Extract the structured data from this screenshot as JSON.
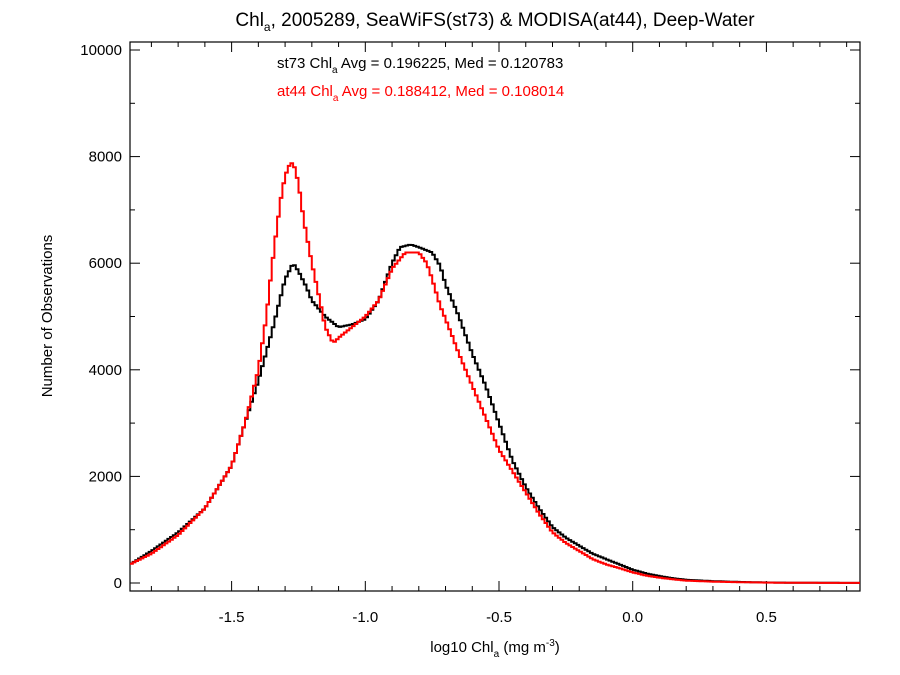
{
  "chart_data": {
    "type": "line",
    "title_parts": {
      "a": "Chl",
      "sub": "a",
      "b": ", 2005289, SeaWiFS(st73) & MODISA(at44), Deep-Water"
    },
    "xlabel_parts": {
      "a": "log10 Chl",
      "sub": "a",
      "b": " (mg m",
      "sup": "-3",
      "c": ")"
    },
    "ylabel": "Number of Observations",
    "xlim": [
      -1.88,
      0.85
    ],
    "ylim": [
      -150,
      10150
    ],
    "x_ticks": [
      -1.5,
      -1.0,
      -0.5,
      0.0,
      0.5
    ],
    "x_tick_labels": [
      "-1.5",
      "-1.0",
      "-0.5",
      "0.0",
      "0.5"
    ],
    "y_ticks": [
      0,
      2000,
      4000,
      6000,
      8000,
      10000
    ],
    "y_tick_labels": [
      "0",
      "2000",
      "4000",
      "6000",
      "8000",
      "10000"
    ],
    "grid": false,
    "series": [
      {
        "name": "st73",
        "color": "#000000",
        "annotation": {
          "a": "st73 Chl",
          "sub": "a",
          "b": " Avg = 0.196225, Med = 0.120783"
        },
        "points": [
          [
            -1.88,
            350
          ],
          [
            -1.8,
            600
          ],
          [
            -1.7,
            950
          ],
          [
            -1.6,
            1400
          ],
          [
            -1.5,
            2200
          ],
          [
            -1.45,
            3000
          ],
          [
            -1.4,
            3800
          ],
          [
            -1.35,
            4700
          ],
          [
            -1.32,
            5300
          ],
          [
            -1.3,
            5700
          ],
          [
            -1.27,
            6000
          ],
          [
            -1.25,
            5850
          ],
          [
            -1.22,
            5550
          ],
          [
            -1.2,
            5300
          ],
          [
            -1.15,
            5000
          ],
          [
            -1.1,
            4800
          ],
          [
            -1.05,
            4850
          ],
          [
            -1.0,
            4950
          ],
          [
            -0.95,
            5300
          ],
          [
            -0.9,
            6000
          ],
          [
            -0.87,
            6300
          ],
          [
            -0.83,
            6350
          ],
          [
            -0.8,
            6300
          ],
          [
            -0.75,
            6200
          ],
          [
            -0.72,
            5950
          ],
          [
            -0.7,
            5600
          ],
          [
            -0.65,
            5000
          ],
          [
            -0.6,
            4300
          ],
          [
            -0.55,
            3700
          ],
          [
            -0.5,
            3000
          ],
          [
            -0.45,
            2300
          ],
          [
            -0.4,
            1800
          ],
          [
            -0.35,
            1400
          ],
          [
            -0.3,
            1050
          ],
          [
            -0.25,
            850
          ],
          [
            -0.2,
            700
          ],
          [
            -0.15,
            550
          ],
          [
            -0.1,
            450
          ],
          [
            -0.05,
            350
          ],
          [
            0.0,
            250
          ],
          [
            0.05,
            180
          ],
          [
            0.1,
            130
          ],
          [
            0.15,
            90
          ],
          [
            0.2,
            60
          ],
          [
            0.3,
            35
          ],
          [
            0.4,
            20
          ],
          [
            0.5,
            10
          ],
          [
            0.6,
            5
          ],
          [
            0.85,
            2
          ]
        ]
      },
      {
        "name": "at44",
        "color": "#ff0000",
        "annotation": {
          "a": "at44 Chl",
          "sub": "a",
          "b": " Avg = 0.188412, Med = 0.108014"
        },
        "points": [
          [
            -1.88,
            350
          ],
          [
            -1.8,
            550
          ],
          [
            -1.7,
            900
          ],
          [
            -1.6,
            1400
          ],
          [
            -1.5,
            2200
          ],
          [
            -1.45,
            3000
          ],
          [
            -1.4,
            4000
          ],
          [
            -1.37,
            5000
          ],
          [
            -1.35,
            5900
          ],
          [
            -1.33,
            6700
          ],
          [
            -1.31,
            7400
          ],
          [
            -1.29,
            7800
          ],
          [
            -1.27,
            7900
          ],
          [
            -1.25,
            7500
          ],
          [
            -1.23,
            6800
          ],
          [
            -1.2,
            6000
          ],
          [
            -1.17,
            5300
          ],
          [
            -1.15,
            4800
          ],
          [
            -1.12,
            4500
          ],
          [
            -1.1,
            4600
          ],
          [
            -1.05,
            4800
          ],
          [
            -1.0,
            5000
          ],
          [
            -0.95,
            5300
          ],
          [
            -0.9,
            5900
          ],
          [
            -0.85,
            6200
          ],
          [
            -0.8,
            6200
          ],
          [
            -0.77,
            6000
          ],
          [
            -0.75,
            5700
          ],
          [
            -0.72,
            5200
          ],
          [
            -0.68,
            4700
          ],
          [
            -0.65,
            4300
          ],
          [
            -0.6,
            3700
          ],
          [
            -0.55,
            3100
          ],
          [
            -0.5,
            2500
          ],
          [
            -0.45,
            2100
          ],
          [
            -0.4,
            1700
          ],
          [
            -0.35,
            1300
          ],
          [
            -0.3,
            950
          ],
          [
            -0.25,
            750
          ],
          [
            -0.2,
            600
          ],
          [
            -0.15,
            450
          ],
          [
            -0.1,
            350
          ],
          [
            -0.05,
            280
          ],
          [
            0.0,
            200
          ],
          [
            0.05,
            140
          ],
          [
            0.1,
            100
          ],
          [
            0.15,
            70
          ],
          [
            0.2,
            45
          ],
          [
            0.3,
            25
          ],
          [
            0.4,
            15
          ],
          [
            0.5,
            8
          ],
          [
            0.6,
            4
          ],
          [
            0.85,
            1
          ]
        ]
      }
    ]
  }
}
